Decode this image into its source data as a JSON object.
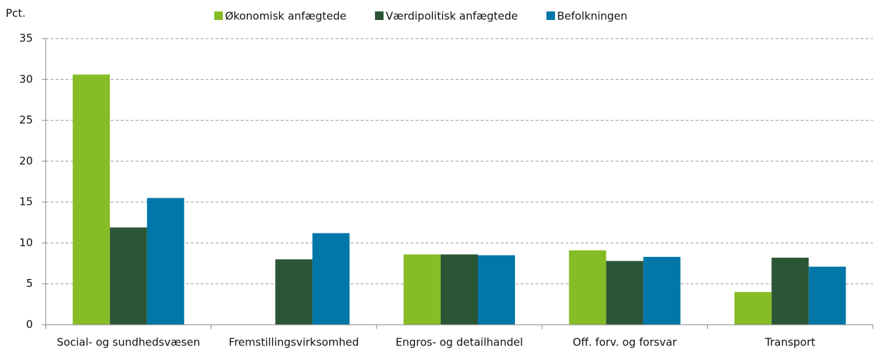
{
  "chart_data": {
    "type": "bar",
    "y_label": "Pct.",
    "categories": [
      "Social- og sundhedsvæsen",
      "Fremstillingsvirksomhed",
      "Engros- og detailhandel",
      "Off. forv. og forsvar",
      "Transport"
    ],
    "series": [
      {
        "name": "Økonomisk anfægtede",
        "color": "#86bc25",
        "values": [
          30.6,
          null,
          8.6,
          9.1,
          4.0
        ]
      },
      {
        "name": "Værdipolitisk anfægtede",
        "color": "#2b5636",
        "values": [
          11.9,
          8.0,
          8.6,
          7.8,
          8.2
        ]
      },
      {
        "name": "Befolkningen",
        "color": "#0077a8",
        "values": [
          15.5,
          11.2,
          8.5,
          8.3,
          7.1
        ]
      }
    ],
    "ylim": [
      0,
      35
    ],
    "yticks": [
      0,
      5,
      10,
      15,
      20,
      25,
      30,
      35
    ],
    "grid": true,
    "legend": "top"
  }
}
